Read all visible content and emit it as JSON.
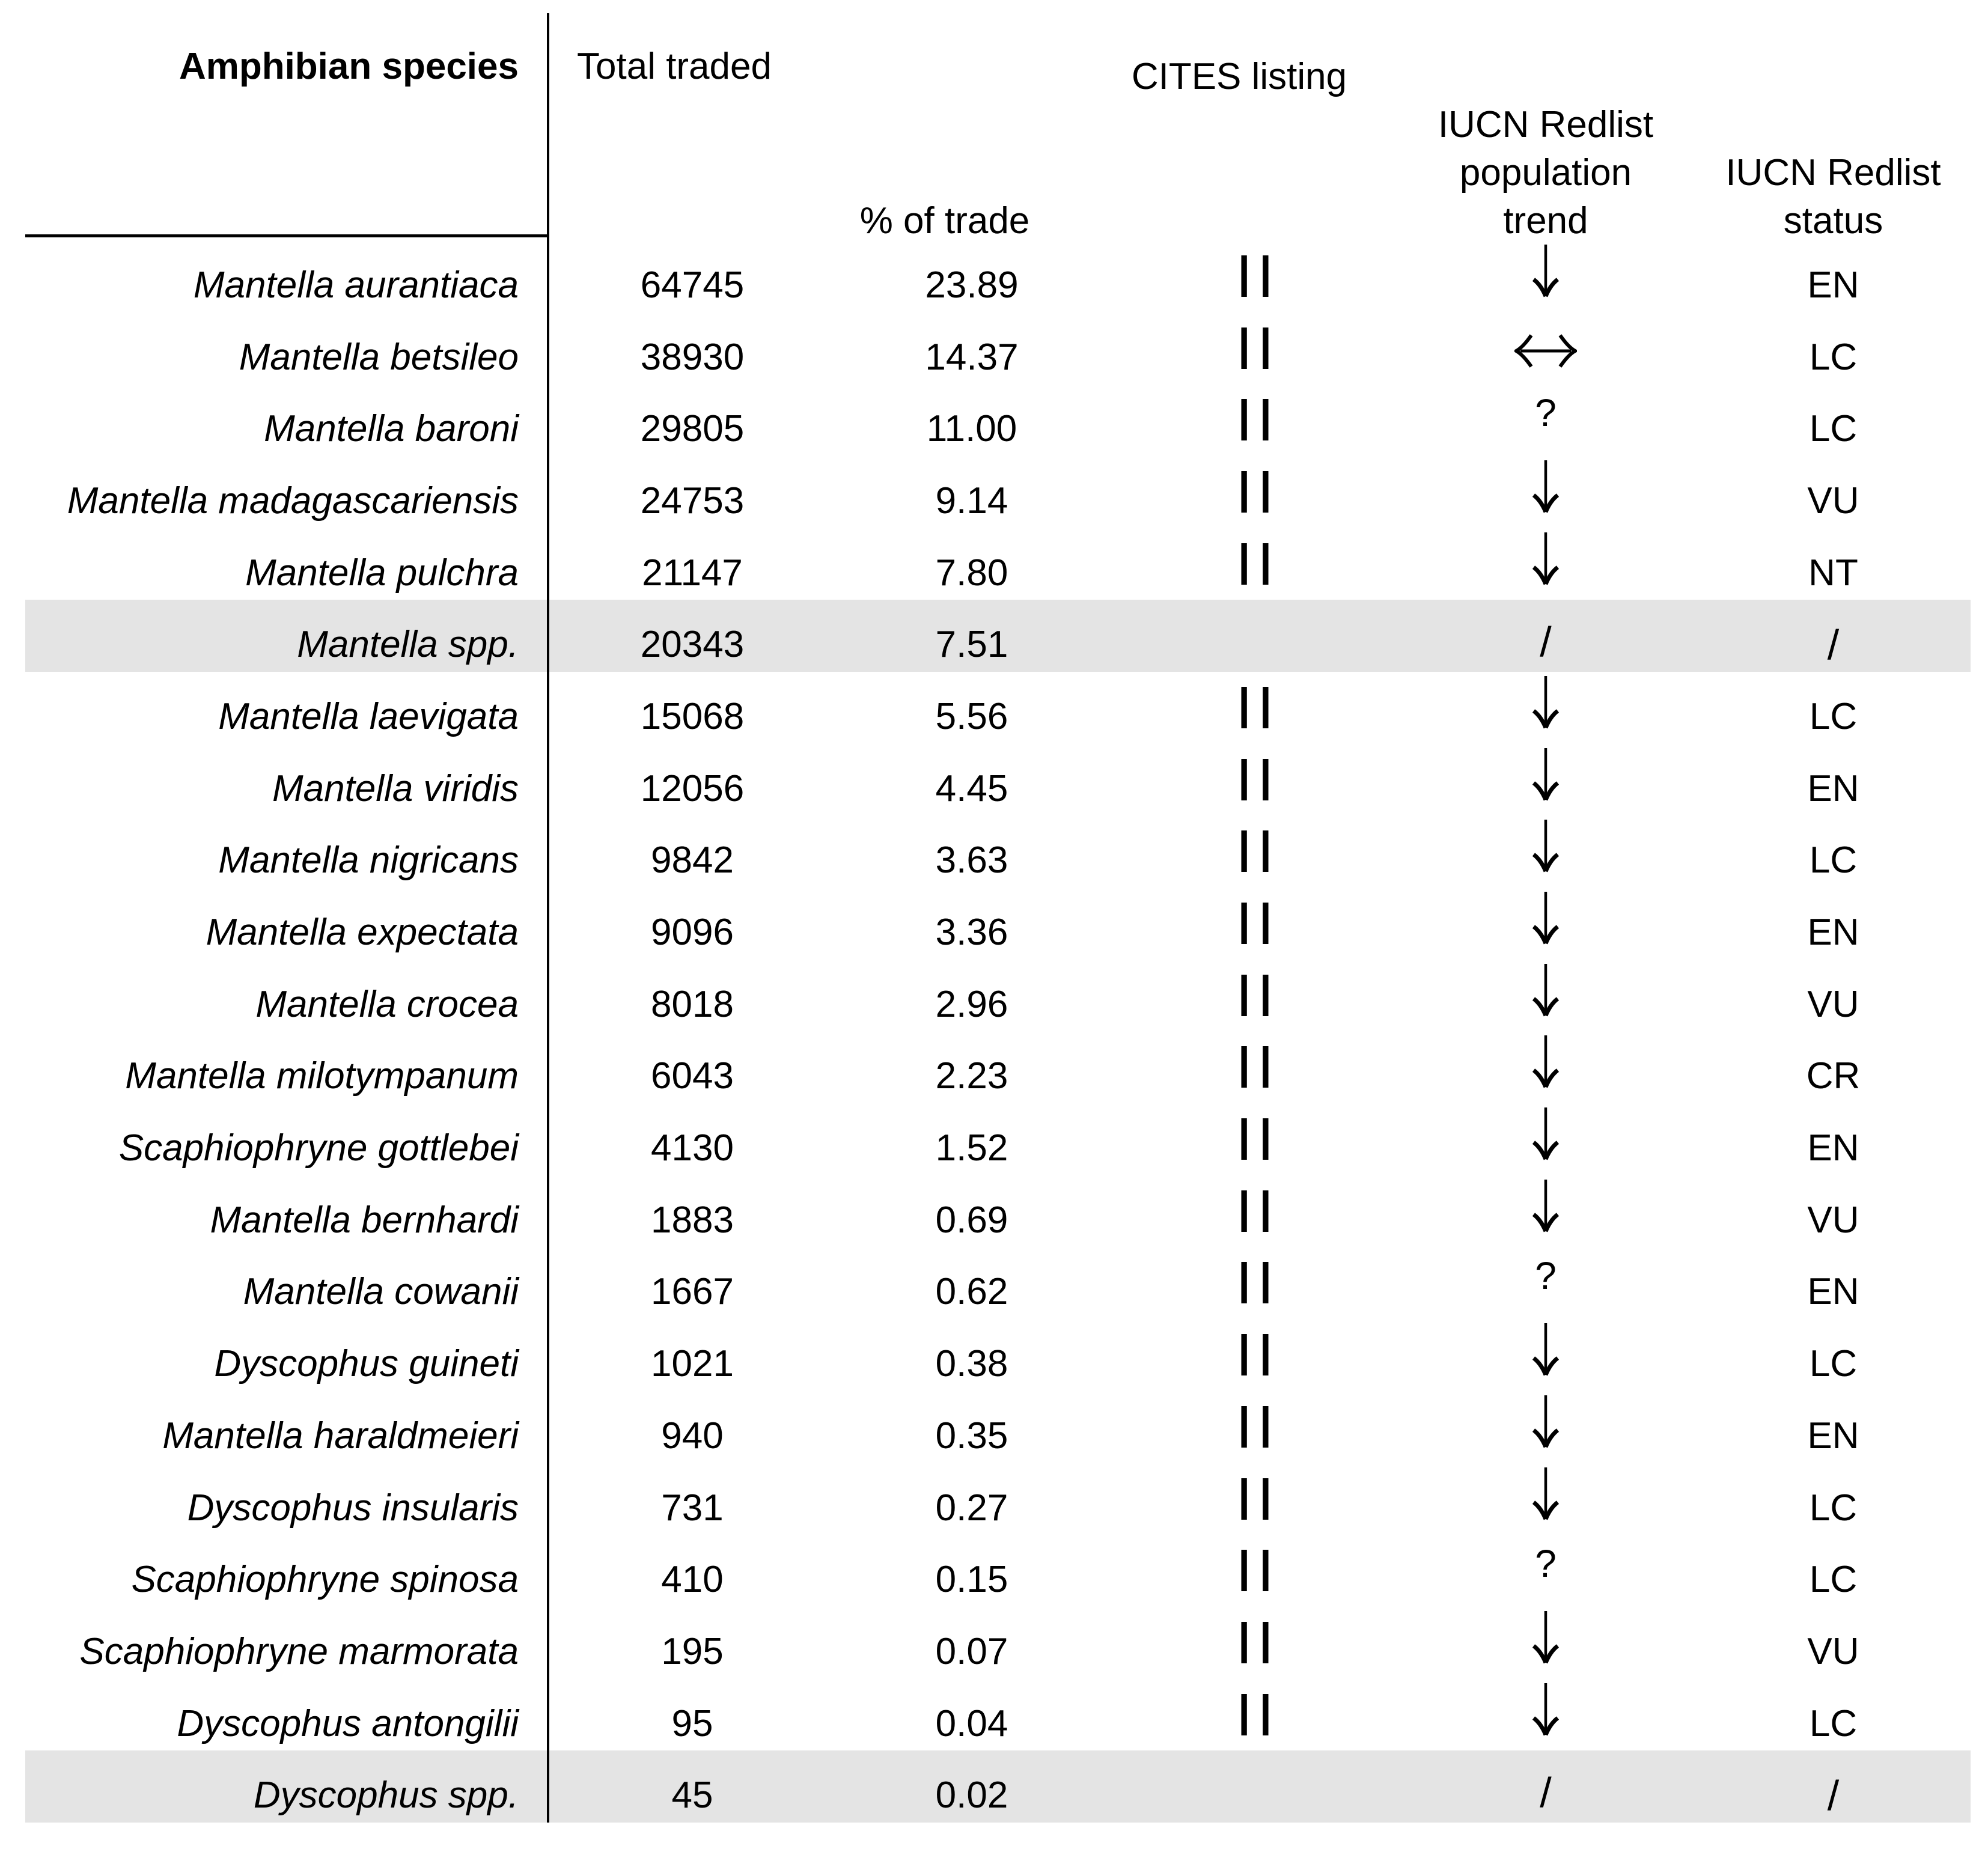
{
  "header": {
    "species": "Amphibian species",
    "total": "Total traded",
    "pct": "% of trade",
    "cites": "CITES listing",
    "trend_lines": [
      "IUCN Redlist",
      "population",
      "trend"
    ],
    "status_lines": [
      "IUCN Redlist",
      "status"
    ]
  },
  "trend_symbols": {
    "down": "↓",
    "stable": "↔",
    "unknown": "?",
    "none": "/"
  },
  "colors": {
    "shaded_row": "#e4e4e4",
    "text": "#000000",
    "rule": "#000000"
  },
  "rows": [
    {
      "species": "Mantella aurantiaca",
      "total": "64745",
      "pct": "23.89",
      "cites": "II",
      "trend": "down",
      "status": "EN",
      "shaded": false
    },
    {
      "species": "Mantella betsileo",
      "total": "38930",
      "pct": "14.37",
      "cites": "II",
      "trend": "stable",
      "status": "LC",
      "shaded": false
    },
    {
      "species": "Mantella baroni",
      "total": "29805",
      "pct": "11.00",
      "cites": "II",
      "trend": "unknown",
      "status": "LC",
      "shaded": false
    },
    {
      "species": "Mantella madagascariensis",
      "total": "24753",
      "pct": "9.14",
      "cites": "II",
      "trend": "down",
      "status": "VU",
      "shaded": false
    },
    {
      "species": "Mantella pulchra",
      "total": "21147",
      "pct": "7.80",
      "cites": "II",
      "trend": "down",
      "status": "NT",
      "shaded": false
    },
    {
      "species": "Mantella spp.",
      "total": "20343",
      "pct": "7.51",
      "cites": "",
      "trend": "none",
      "status": "/",
      "shaded": true
    },
    {
      "species": "Mantella laevigata",
      "total": "15068",
      "pct": "5.56",
      "cites": "II",
      "trend": "down",
      "status": "LC",
      "shaded": false
    },
    {
      "species": "Mantella viridis",
      "total": "12056",
      "pct": "4.45",
      "cites": "II",
      "trend": "down",
      "status": "EN",
      "shaded": false
    },
    {
      "species": "Mantella nigricans",
      "total": "9842",
      "pct": "3.63",
      "cites": "II",
      "trend": "down",
      "status": "LC",
      "shaded": false
    },
    {
      "species": "Mantella expectata",
      "total": "9096",
      "pct": "3.36",
      "cites": "II",
      "trend": "down",
      "status": "EN",
      "shaded": false
    },
    {
      "species": "Mantella crocea",
      "total": "8018",
      "pct": "2.96",
      "cites": "II",
      "trend": "down",
      "status": "VU",
      "shaded": false
    },
    {
      "species": "Mantella milotympanum",
      "total": "6043",
      "pct": "2.23",
      "cites": "II",
      "trend": "down",
      "status": "CR",
      "shaded": false
    },
    {
      "species": "Scaphiophryne gottlebei",
      "total": "4130",
      "pct": "1.52",
      "cites": "II",
      "trend": "down",
      "status": "EN",
      "shaded": false
    },
    {
      "species": "Mantella bernhardi",
      "total": "1883",
      "pct": "0.69",
      "cites": "II",
      "trend": "down",
      "status": "VU",
      "shaded": false
    },
    {
      "species": "Mantella cowanii",
      "total": "1667",
      "pct": "0.62",
      "cites": "II",
      "trend": "unknown",
      "status": "EN",
      "shaded": false
    },
    {
      "species": "Dyscophus guineti",
      "total": "1021",
      "pct": "0.38",
      "cites": "II",
      "trend": "down",
      "status": "LC",
      "shaded": false
    },
    {
      "species": "Mantella haraldmeieri",
      "total": "940",
      "pct": "0.35",
      "cites": "II",
      "trend": "down",
      "status": "EN",
      "shaded": false
    },
    {
      "species": "Dyscophus insularis",
      "total": "731",
      "pct": "0.27",
      "cites": "II",
      "trend": "down",
      "status": "LC",
      "shaded": false
    },
    {
      "species": "Scaphiophryne spinosa",
      "total": "410",
      "pct": "0.15",
      "cites": "II",
      "trend": "unknown",
      "status": "LC",
      "shaded": false
    },
    {
      "species": "Scaphiophryne marmorata",
      "total": "195",
      "pct": "0.07",
      "cites": "II",
      "trend": "down",
      "status": "VU",
      "shaded": false
    },
    {
      "species": "Dyscophus antongilii",
      "total": "95",
      "pct": "0.04",
      "cites": "II",
      "trend": "down",
      "status": "LC",
      "shaded": false
    },
    {
      "species": "Dyscophus spp.",
      "total": "45",
      "pct": "0.02",
      "cites": "",
      "trend": "none",
      "status": "/",
      "shaded": true
    }
  ]
}
